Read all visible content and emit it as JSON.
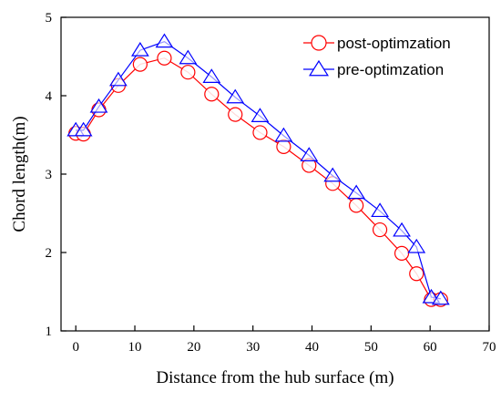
{
  "chart_data": {
    "type": "line",
    "title": "",
    "xlabel": "Distance from the hub surface (m)",
    "ylabel": "Chord length(m)",
    "xlim": [
      -2.5,
      70
    ],
    "ylim": [
      1,
      5
    ],
    "xticks": [
      0,
      10,
      20,
      30,
      40,
      50,
      60,
      70
    ],
    "yticks": [
      1,
      2,
      3,
      4,
      5
    ],
    "grid": false,
    "legend_position": "top-right",
    "series": [
      {
        "name": "post-optimzation",
        "color": "#ff0000",
        "marker": "circle",
        "x": [
          0,
          1.3,
          3.9,
          7.2,
          10.9,
          15,
          19,
          23,
          27,
          31.2,
          35.2,
          39.5,
          43.5,
          47.5,
          51.5,
          55.2,
          57.7,
          60.2,
          61.8
        ],
        "y": [
          3.52,
          3.51,
          3.82,
          4.13,
          4.4,
          4.48,
          4.3,
          4.02,
          3.76,
          3.53,
          3.35,
          3.11,
          2.88,
          2.6,
          2.29,
          1.99,
          1.73,
          1.4,
          1.4
        ]
      },
      {
        "name": "pre-optimzation",
        "color": "#0000ff",
        "marker": "triangle",
        "x": [
          0,
          1.3,
          3.9,
          7.2,
          10.9,
          15,
          19,
          23,
          27,
          31.2,
          35.2,
          39.5,
          43.5,
          47.5,
          51.5,
          55.2,
          57.7,
          60.2,
          61.8
        ],
        "y": [
          3.56,
          3.56,
          3.86,
          4.2,
          4.58,
          4.69,
          4.48,
          4.24,
          3.98,
          3.74,
          3.49,
          3.24,
          2.98,
          2.76,
          2.53,
          2.28,
          2.07,
          1.43,
          1.41
        ]
      }
    ]
  }
}
